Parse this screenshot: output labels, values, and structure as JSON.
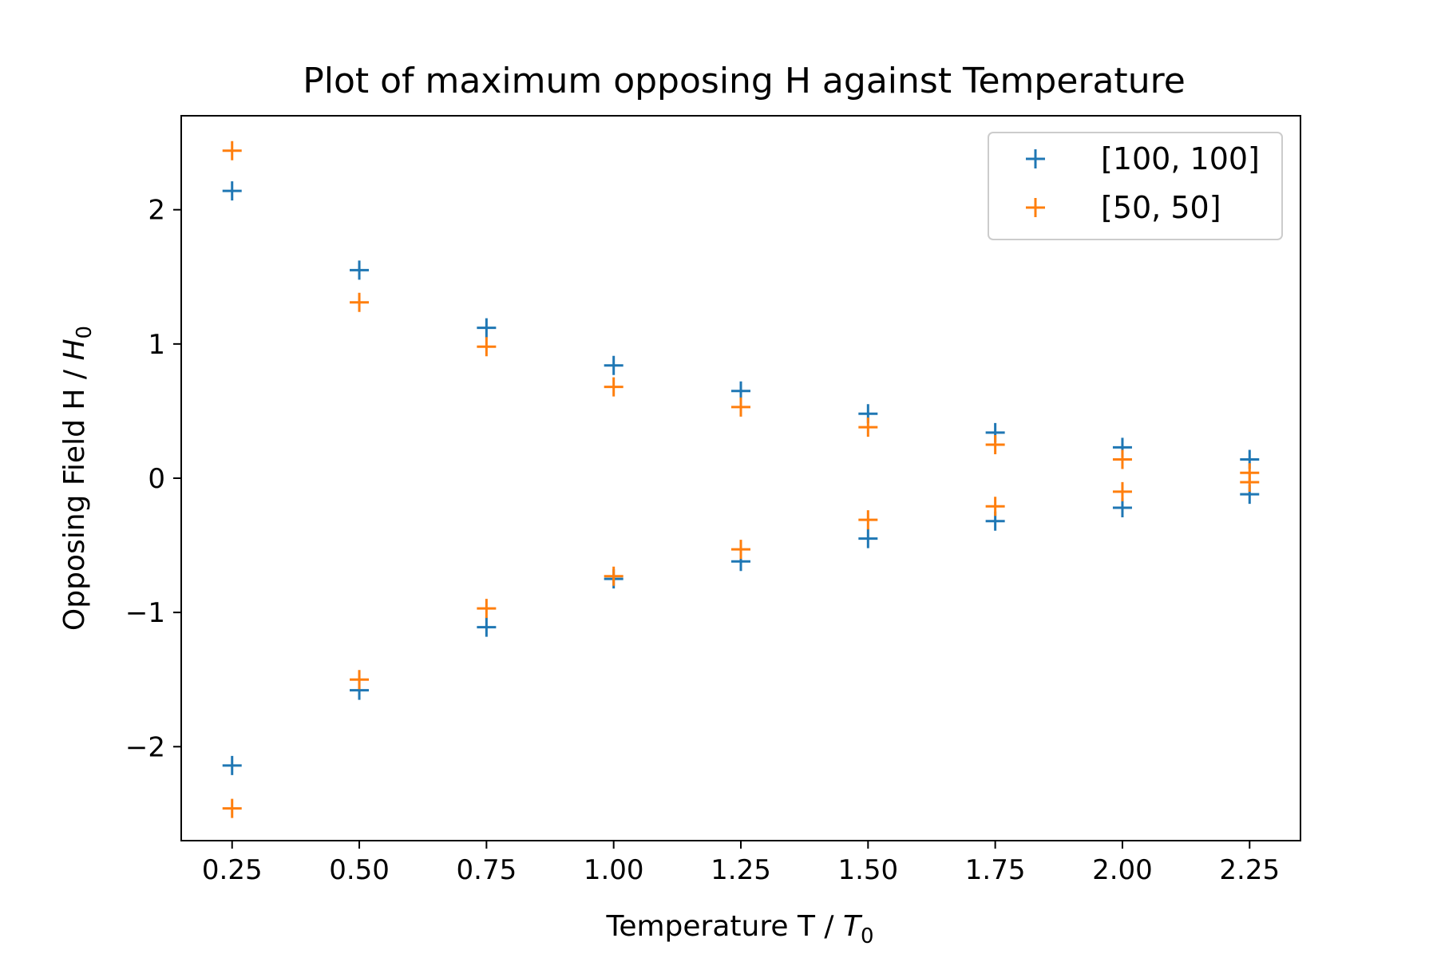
{
  "chart_data": {
    "type": "scatter",
    "title": "Plot of maximum opposing H against Temperature",
    "xlabel": {
      "prefix": "Temperature T / ",
      "var": "T",
      "sub": "0"
    },
    "ylabel": {
      "prefix": "Opposing Field H / ",
      "var": "H",
      "sub": "0"
    },
    "xlim": [
      0.15,
      2.35
    ],
    "ylim": [
      -2.7,
      2.7
    ],
    "xticks": [
      0.25,
      0.5,
      0.75,
      1.0,
      1.25,
      1.5,
      1.75,
      2.0,
      2.25
    ],
    "xtick_labels": [
      "0.25",
      "0.50",
      "0.75",
      "1.00",
      "1.25",
      "1.50",
      "1.75",
      "2.00",
      "2.25"
    ],
    "yticks": [
      -2,
      -1,
      0,
      1,
      2
    ],
    "ytick_labels": [
      "−2",
      "−1",
      "0",
      "1",
      "2"
    ],
    "grid": false,
    "legend_position": "top-right",
    "marker": "+",
    "series": [
      {
        "name": "[100, 100]",
        "color": "#1f77b4",
        "x": [
          0.25,
          0.5,
          0.75,
          1.0,
          1.25,
          1.5,
          1.75,
          2.0,
          2.25,
          0.25,
          0.5,
          0.75,
          1.0,
          1.25,
          1.5,
          1.75,
          2.0,
          2.25
        ],
        "y": [
          2.14,
          1.55,
          1.12,
          0.84,
          0.65,
          0.48,
          0.34,
          0.23,
          0.14,
          -2.14,
          -1.58,
          -1.11,
          -0.75,
          -0.62,
          -0.45,
          -0.32,
          -0.22,
          -0.12
        ]
      },
      {
        "name": "[50, 50]",
        "color": "#ff7f0e",
        "x": [
          0.25,
          0.5,
          0.75,
          1.0,
          1.25,
          1.5,
          1.75,
          2.0,
          2.25,
          0.25,
          0.5,
          0.75,
          1.0,
          1.25,
          1.5,
          1.75,
          2.0,
          2.25
        ],
        "y": [
          2.44,
          1.31,
          0.98,
          0.68,
          0.53,
          0.38,
          0.25,
          0.14,
          0.04,
          -2.46,
          -1.5,
          -0.97,
          -0.73,
          -0.53,
          -0.31,
          -0.21,
          -0.1,
          -0.03
        ]
      }
    ]
  }
}
